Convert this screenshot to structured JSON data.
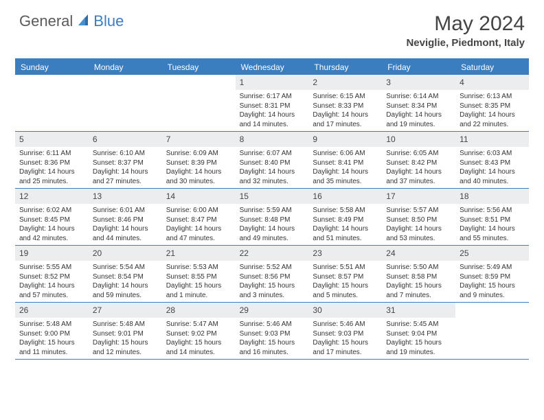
{
  "logo": {
    "part1": "General",
    "part2": "Blue"
  },
  "title": "May 2024",
  "location": "Neviglie, Piedmont, Italy",
  "day_headers": [
    "Sunday",
    "Monday",
    "Tuesday",
    "Wednesday",
    "Thursday",
    "Friday",
    "Saturday"
  ],
  "colors": {
    "accent": "#3b7ec0",
    "row_bg": "#ecedef",
    "text": "#444444"
  },
  "weeks": [
    [
      null,
      null,
      null,
      {
        "n": "1",
        "sr": "6:17 AM",
        "ss": "8:31 PM",
        "dl": "14 hours and 14 minutes."
      },
      {
        "n": "2",
        "sr": "6:15 AM",
        "ss": "8:33 PM",
        "dl": "14 hours and 17 minutes."
      },
      {
        "n": "3",
        "sr": "6:14 AM",
        "ss": "8:34 PM",
        "dl": "14 hours and 19 minutes."
      },
      {
        "n": "4",
        "sr": "6:13 AM",
        "ss": "8:35 PM",
        "dl": "14 hours and 22 minutes."
      }
    ],
    [
      {
        "n": "5",
        "sr": "6:11 AM",
        "ss": "8:36 PM",
        "dl": "14 hours and 25 minutes."
      },
      {
        "n": "6",
        "sr": "6:10 AM",
        "ss": "8:37 PM",
        "dl": "14 hours and 27 minutes."
      },
      {
        "n": "7",
        "sr": "6:09 AM",
        "ss": "8:39 PM",
        "dl": "14 hours and 30 minutes."
      },
      {
        "n": "8",
        "sr": "6:07 AM",
        "ss": "8:40 PM",
        "dl": "14 hours and 32 minutes."
      },
      {
        "n": "9",
        "sr": "6:06 AM",
        "ss": "8:41 PM",
        "dl": "14 hours and 35 minutes."
      },
      {
        "n": "10",
        "sr": "6:05 AM",
        "ss": "8:42 PM",
        "dl": "14 hours and 37 minutes."
      },
      {
        "n": "11",
        "sr": "6:03 AM",
        "ss": "8:43 PM",
        "dl": "14 hours and 40 minutes."
      }
    ],
    [
      {
        "n": "12",
        "sr": "6:02 AM",
        "ss": "8:45 PM",
        "dl": "14 hours and 42 minutes."
      },
      {
        "n": "13",
        "sr": "6:01 AM",
        "ss": "8:46 PM",
        "dl": "14 hours and 44 minutes."
      },
      {
        "n": "14",
        "sr": "6:00 AM",
        "ss": "8:47 PM",
        "dl": "14 hours and 47 minutes."
      },
      {
        "n": "15",
        "sr": "5:59 AM",
        "ss": "8:48 PM",
        "dl": "14 hours and 49 minutes."
      },
      {
        "n": "16",
        "sr": "5:58 AM",
        "ss": "8:49 PM",
        "dl": "14 hours and 51 minutes."
      },
      {
        "n": "17",
        "sr": "5:57 AM",
        "ss": "8:50 PM",
        "dl": "14 hours and 53 minutes."
      },
      {
        "n": "18",
        "sr": "5:56 AM",
        "ss": "8:51 PM",
        "dl": "14 hours and 55 minutes."
      }
    ],
    [
      {
        "n": "19",
        "sr": "5:55 AM",
        "ss": "8:52 PM",
        "dl": "14 hours and 57 minutes."
      },
      {
        "n": "20",
        "sr": "5:54 AM",
        "ss": "8:54 PM",
        "dl": "14 hours and 59 minutes."
      },
      {
        "n": "21",
        "sr": "5:53 AM",
        "ss": "8:55 PM",
        "dl": "15 hours and 1 minute."
      },
      {
        "n": "22",
        "sr": "5:52 AM",
        "ss": "8:56 PM",
        "dl": "15 hours and 3 minutes."
      },
      {
        "n": "23",
        "sr": "5:51 AM",
        "ss": "8:57 PM",
        "dl": "15 hours and 5 minutes."
      },
      {
        "n": "24",
        "sr": "5:50 AM",
        "ss": "8:58 PM",
        "dl": "15 hours and 7 minutes."
      },
      {
        "n": "25",
        "sr": "5:49 AM",
        "ss": "8:59 PM",
        "dl": "15 hours and 9 minutes."
      }
    ],
    [
      {
        "n": "26",
        "sr": "5:48 AM",
        "ss": "9:00 PM",
        "dl": "15 hours and 11 minutes."
      },
      {
        "n": "27",
        "sr": "5:48 AM",
        "ss": "9:01 PM",
        "dl": "15 hours and 12 minutes."
      },
      {
        "n": "28",
        "sr": "5:47 AM",
        "ss": "9:02 PM",
        "dl": "15 hours and 14 minutes."
      },
      {
        "n": "29",
        "sr": "5:46 AM",
        "ss": "9:03 PM",
        "dl": "15 hours and 16 minutes."
      },
      {
        "n": "30",
        "sr": "5:46 AM",
        "ss": "9:03 PM",
        "dl": "15 hours and 17 minutes."
      },
      {
        "n": "31",
        "sr": "5:45 AM",
        "ss": "9:04 PM",
        "dl": "15 hours and 19 minutes."
      },
      null
    ]
  ],
  "labels": {
    "sunrise": "Sunrise:",
    "sunset": "Sunset:",
    "daylight": "Daylight:"
  }
}
